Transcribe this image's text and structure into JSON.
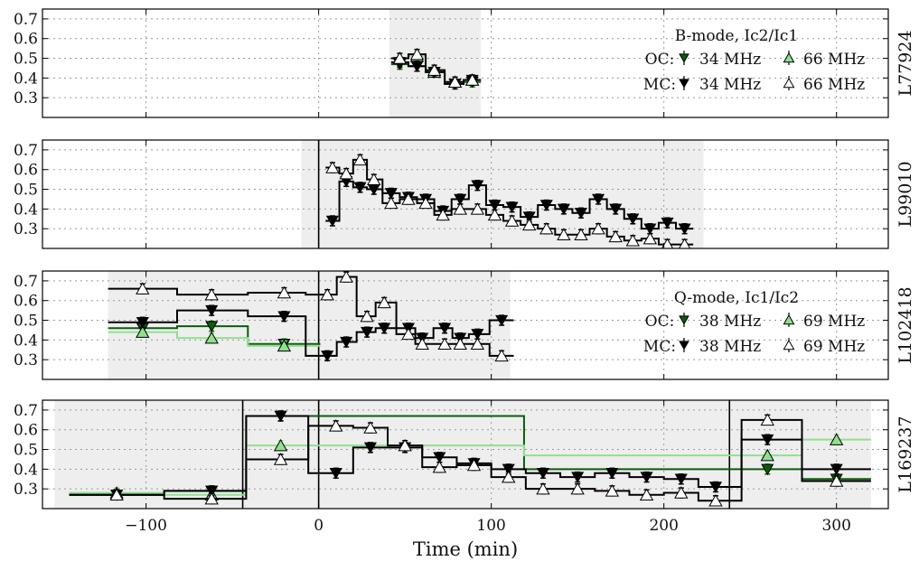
{
  "chart_data": {
    "type": "line",
    "xlabel": "Time (min)",
    "xlim": [
      -160,
      330
    ],
    "xticks": [
      -100,
      0,
      100,
      200,
      300
    ],
    "xtick_labels": [
      "−100",
      "0",
      "100",
      "200",
      "300"
    ],
    "grid": true,
    "colors": {
      "oc_low": "#0b5d0b",
      "oc_high": "#90e090",
      "mc_low": "#000000",
      "mc_high": "#ffffff",
      "shade": "#eeeeee"
    },
    "panels": [
      {
        "label": "L77924",
        "ylim": [
          0.2,
          0.75
        ],
        "yticks": [
          0.3,
          0.4,
          0.5,
          0.6,
          0.7
        ],
        "ytick_labels": [
          "0.3",
          "0.4",
          "0.5",
          "0.6",
          "0.7"
        ],
        "shade": [
          [
            41,
            94
          ]
        ],
        "vlines": [],
        "legend": {
          "title": "B-mode, Ic2/Ic1",
          "row1": "OC:",
          "row2": "MC:",
          "low": "34 MHz",
          "high": "66 MHz"
        },
        "series": [
          {
            "key": "oc_low",
            "x": [
              47,
              57,
              67,
              79,
              89
            ],
            "y": [
              0.47,
              0.46,
              0.43,
              0.37,
              0.38
            ]
          },
          {
            "key": "oc_high",
            "x": [
              47,
              57,
              67,
              79,
              89
            ],
            "y": [
              0.5,
              0.51,
              0.43,
              0.38,
              0.39
            ]
          },
          {
            "key": "mc_low",
            "x": [
              47,
              57,
              67,
              79,
              89
            ],
            "y": [
              0.48,
              0.46,
              0.43,
              0.37,
              0.39
            ]
          },
          {
            "key": "mc_high",
            "x": [
              47,
              57,
              67,
              79,
              89
            ],
            "y": [
              0.5,
              0.52,
              0.44,
              0.38,
              0.39
            ]
          }
        ]
      },
      {
        "label": "L99010",
        "ylim": [
          0.2,
          0.75
        ],
        "yticks": [
          0.3,
          0.4,
          0.5,
          0.6,
          0.7
        ],
        "ytick_labels": [
          "0.3",
          "0.4",
          "0.5",
          "0.6",
          "0.7"
        ],
        "shade": [
          [
            -10,
            223
          ]
        ],
        "vlines": [
          0
        ],
        "series": [
          {
            "key": "mc_low",
            "x": [
              8,
              16,
              24,
              32,
              42,
              52,
              62,
              72,
              82,
              92,
              102,
              112,
              122,
              132,
              142,
              152,
              162,
              172,
              182,
              192,
              202,
              212
            ],
            "y": [
              0.34,
              0.54,
              0.51,
              0.5,
              0.48,
              0.46,
              0.45,
              0.39,
              0.45,
              0.52,
              0.42,
              0.41,
              0.36,
              0.42,
              0.4,
              0.38,
              0.45,
              0.4,
              0.35,
              0.3,
              0.33,
              0.3
            ]
          },
          {
            "key": "mc_high",
            "x": [
              8,
              16,
              24,
              32,
              42,
              52,
              62,
              72,
              82,
              92,
              102,
              112,
              122,
              132,
              142,
              152,
              162,
              172,
              182,
              192,
              202,
              212
            ],
            "y": [
              0.61,
              0.58,
              0.65,
              0.55,
              0.43,
              0.45,
              0.43,
              0.37,
              0.4,
              0.4,
              0.37,
              0.34,
              0.32,
              0.3,
              0.27,
              0.27,
              0.3,
              0.26,
              0.24,
              0.25,
              0.22,
              0.22
            ]
          }
        ]
      },
      {
        "label": "L102418",
        "ylim": [
          0.2,
          0.75
        ],
        "yticks": [
          0.3,
          0.4,
          0.5,
          0.6,
          0.7
        ],
        "ytick_labels": [
          "0.3",
          "0.4",
          "0.5",
          "0.6",
          "0.7"
        ],
        "shade": [
          [
            -122,
            111
          ]
        ],
        "vlines": [
          0
        ],
        "legend": {
          "title": "Q-mode, Ic1/Ic2",
          "row1": "OC:",
          "row2": "MC:",
          "low": "38 MHz",
          "high": "69 MHz"
        },
        "series": [
          {
            "key": "oc_low",
            "x": [
              -102,
              -62,
              -20
            ],
            "y": [
              0.46,
              0.47,
              0.38
            ]
          },
          {
            "key": "oc_high",
            "x": [
              -102,
              -62,
              -20
            ],
            "y": [
              0.44,
              0.41,
              0.37
            ]
          },
          {
            "key": "mc_low",
            "x": [
              -102,
              -62,
              -20,
              5,
              16,
              28,
              38,
              52,
              60,
              73,
              82,
              92,
              106
            ],
            "y": [
              0.49,
              0.55,
              0.52,
              0.32,
              0.39,
              0.44,
              0.46,
              0.46,
              0.41,
              0.46,
              0.41,
              0.43,
              0.5
            ]
          },
          {
            "key": "mc_high",
            "x": [
              -102,
              -62,
              -20,
              5,
              16,
              28,
              38,
              52,
              60,
              73,
              82,
              92,
              106
            ],
            "y": [
              0.66,
              0.63,
              0.64,
              0.63,
              0.72,
              0.52,
              0.59,
              0.43,
              0.38,
              0.38,
              0.38,
              0.38,
              0.32
            ]
          }
        ]
      },
      {
        "label": "L169237",
        "ylim": [
          0.2,
          0.75
        ],
        "yticks": [
          0.3,
          0.4,
          0.5,
          0.6,
          0.7
        ],
        "ytick_labels": [
          "0.3",
          "0.4",
          "0.5",
          "0.6",
          "0.7"
        ],
        "shade": [
          [
            -153,
            320
          ]
        ],
        "vlines": [
          -44,
          0,
          238
        ],
        "series": [
          {
            "key": "oc_low",
            "x": [
              -117,
              -62,
              -22,
              260,
              300
            ],
            "y": [
              0.27,
              0.29,
              0.67,
              0.4,
              0.35
            ]
          },
          {
            "key": "oc_high",
            "x": [
              -117,
              -62,
              -22,
              260,
              300
            ],
            "y": [
              0.28,
              0.27,
              0.52,
              0.47,
              0.55
            ]
          },
          {
            "key": "mc_low",
            "x": [
              -117,
              -62,
              -22,
              10,
              30,
              50,
              70,
              90,
              110,
              130,
              150,
              170,
              190,
              210,
              230,
              260,
              300
            ],
            "y": [
              0.27,
              0.29,
              0.67,
              0.38,
              0.51,
              0.51,
              0.46,
              0.43,
              0.4,
              0.38,
              0.36,
              0.38,
              0.36,
              0.35,
              0.31,
              0.55,
              0.4
            ]
          },
          {
            "key": "mc_high",
            "x": [
              -117,
              -62,
              -22,
              10,
              30,
              50,
              70,
              90,
              110,
              130,
              150,
              170,
              190,
              210,
              230,
              260,
              300
            ],
            "y": [
              0.27,
              0.25,
              0.45,
              0.62,
              0.61,
              0.52,
              0.41,
              0.42,
              0.36,
              0.3,
              0.3,
              0.29,
              0.27,
              0.28,
              0.24,
              0.65,
              0.34
            ]
          }
        ]
      }
    ]
  }
}
